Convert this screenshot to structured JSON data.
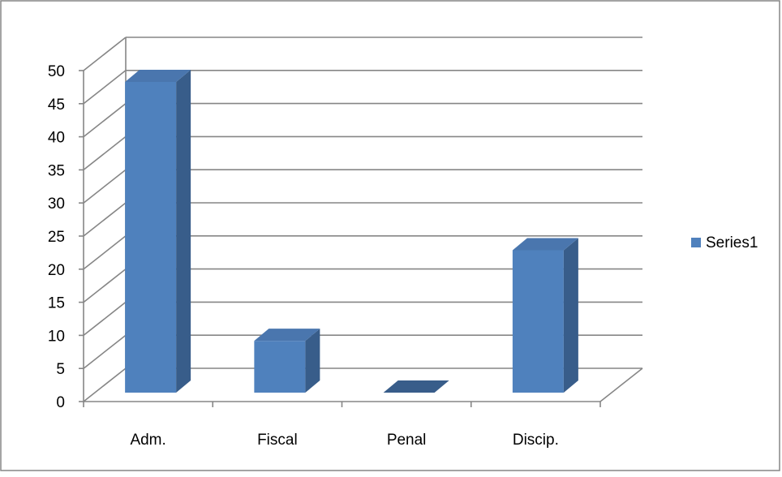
{
  "chart_data": {
    "type": "bar",
    "style": "3d-column",
    "categories": [
      "Adm.",
      "Fiscal",
      "Penal",
      "Discip."
    ],
    "series": [
      {
        "name": "Series1",
        "values": [
          48,
          8,
          0,
          22
        ],
        "color": "#4F81BD"
      }
    ],
    "ylim": [
      0,
      50
    ],
    "yticks": [
      "0",
      "5",
      "10",
      "15",
      "20",
      "25",
      "30",
      "35",
      "40",
      "45",
      "50"
    ],
    "grid": true,
    "legend": "right"
  },
  "colors": {
    "bar_front": "#4F81BD",
    "bar_side": "#385D8A",
    "bar_top": "#4A76AE",
    "gridline": "#868686",
    "frame": "#868686"
  }
}
